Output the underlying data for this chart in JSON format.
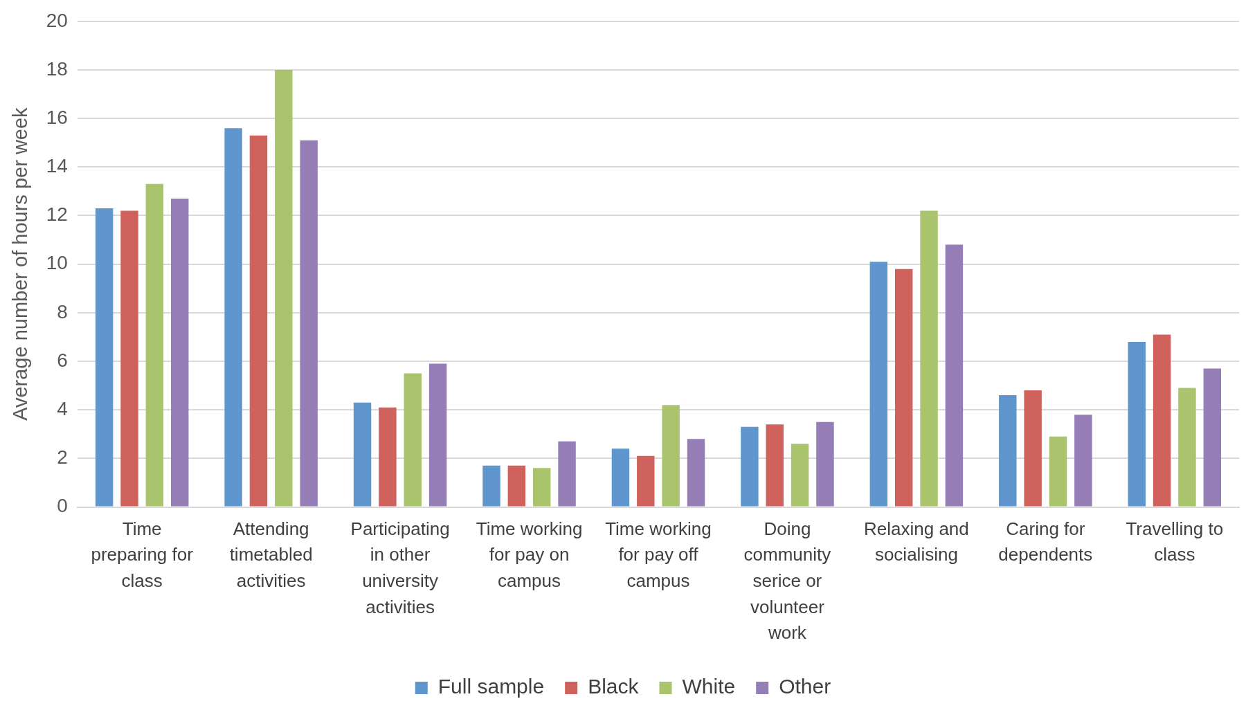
{
  "chart_data": {
    "type": "bar",
    "ylabel": "Average number of hours per week",
    "categories": [
      "Time preparing for class",
      "Attending timetabled activities",
      "Participating in other university activities",
      "Time working for pay on campus",
      "Time working for pay off campus",
      "Doing community serice or volunteer work",
      "Relaxing and socialising",
      "Caring for dependents",
      "Travelling to class"
    ],
    "series": [
      {
        "name": "Full sample",
        "color": "#5f96cd",
        "values": [
          12.3,
          15.6,
          4.3,
          1.7,
          2.4,
          3.3,
          10.1,
          4.6,
          6.8
        ]
      },
      {
        "name": "Black",
        "color": "#cf625c",
        "values": [
          12.2,
          15.3,
          4.1,
          1.7,
          2.1,
          3.4,
          9.8,
          4.8,
          7.1
        ]
      },
      {
        "name": "White",
        "color": "#a9c46c",
        "values": [
          13.3,
          18.0,
          5.5,
          1.6,
          4.2,
          2.6,
          12.2,
          2.9,
          4.9
        ]
      },
      {
        "name": "Other",
        "color": "#957eb6",
        "values": [
          12.7,
          15.1,
          5.9,
          2.7,
          2.8,
          3.5,
          10.8,
          3.8,
          5.7
        ]
      }
    ],
    "ylim": [
      0,
      20
    ],
    "yticks": [
      0,
      2,
      4,
      6,
      8,
      10,
      12,
      14,
      16,
      18,
      20
    ],
    "grid": "y",
    "legend": "bottom"
  }
}
